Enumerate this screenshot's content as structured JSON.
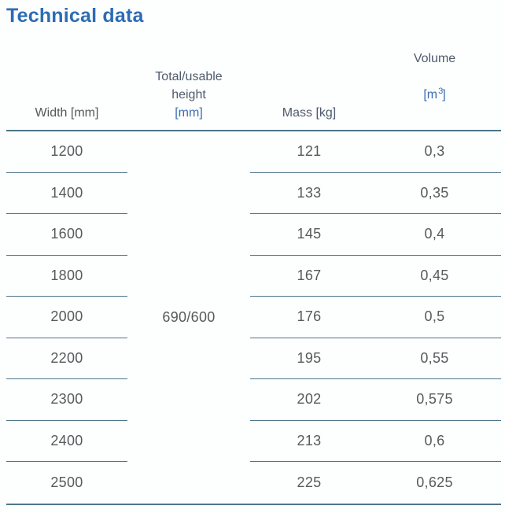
{
  "title": "Technical data",
  "table": {
    "header": {
      "width_label": "Width [mm]",
      "height_label_line1": "Total/usable",
      "height_label_line2": "height",
      "height_unit": "[mm]",
      "mass_label": "Mass [kg]",
      "volume_label": "Volume",
      "volume_unit_open": "[m",
      "volume_unit_sup": "3",
      "volume_unit_close": "]"
    },
    "merged_height_value": "690/600",
    "rows": [
      {
        "width": "1200",
        "mass": "121",
        "volume": "0,3"
      },
      {
        "width": "1400",
        "mass": "133",
        "volume": "0,35"
      },
      {
        "width": "1600",
        "mass": "145",
        "volume": "0,4"
      },
      {
        "width": "1800",
        "mass": "167",
        "volume": "0,45"
      },
      {
        "width": "2000",
        "mass": "176",
        "volume": "0,5"
      },
      {
        "width": "2200",
        "mass": "195",
        "volume": "0,55"
      },
      {
        "width": "2300",
        "mass": "202",
        "volume": "0,575"
      },
      {
        "width": "2400",
        "mass": "213",
        "volume": "0,6"
      },
      {
        "width": "2500",
        "mass": "225",
        "volume": "0,625"
      }
    ]
  },
  "colors": {
    "title_blue": "#2d6cb4",
    "unit_blue": "#3b6fb1",
    "header_slate": "#4e5b6b",
    "header_dark": "#55575a",
    "data_gray": "#58595b",
    "line_steel_blue": "#4f7588"
  }
}
